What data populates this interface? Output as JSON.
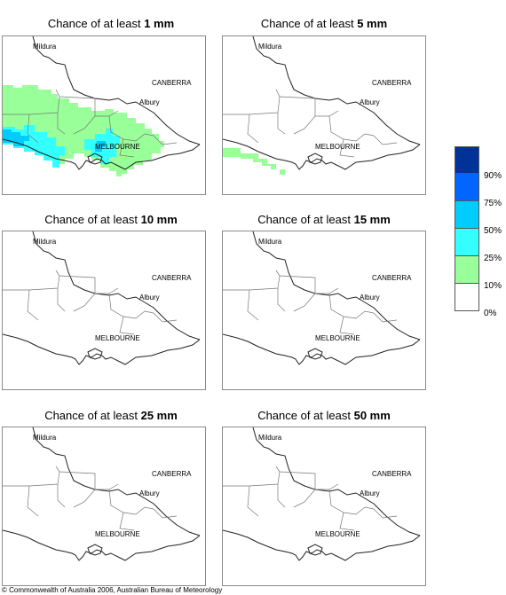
{
  "panels": [
    {
      "prefix": "Chance of at least ",
      "amount": "1 mm"
    },
    {
      "prefix": "Chance of at least ",
      "amount": "5 mm"
    },
    {
      "prefix": "Chance of at least ",
      "amount": "10 mm"
    },
    {
      "prefix": "Chance of at least ",
      "amount": "15 mm"
    },
    {
      "prefix": "Chance of at least ",
      "amount": "25 mm"
    },
    {
      "prefix": "Chance of at least ",
      "amount": "50 mm"
    }
  ],
  "cities": {
    "mildura": "Mildura",
    "canberra": "CANBERRA",
    "albury": "Albury",
    "melbourne": "MELBOURNE"
  },
  "legend": {
    "labels": [
      "90%",
      "75%",
      "50%",
      "25%",
      "10%",
      "0%"
    ],
    "colors": [
      "#003399",
      "#0066ff",
      "#00ccff",
      "#33ffff",
      "#99ff99",
      "#ffffff"
    ]
  },
  "colors": {
    "band_10_25": "#99ff99",
    "band_25_50": "#33ffff",
    "band_50_75": "#00ccff"
  },
  "footer": "© Commonwealth of Australia 2006, Australian Bureau of Meteorology"
}
